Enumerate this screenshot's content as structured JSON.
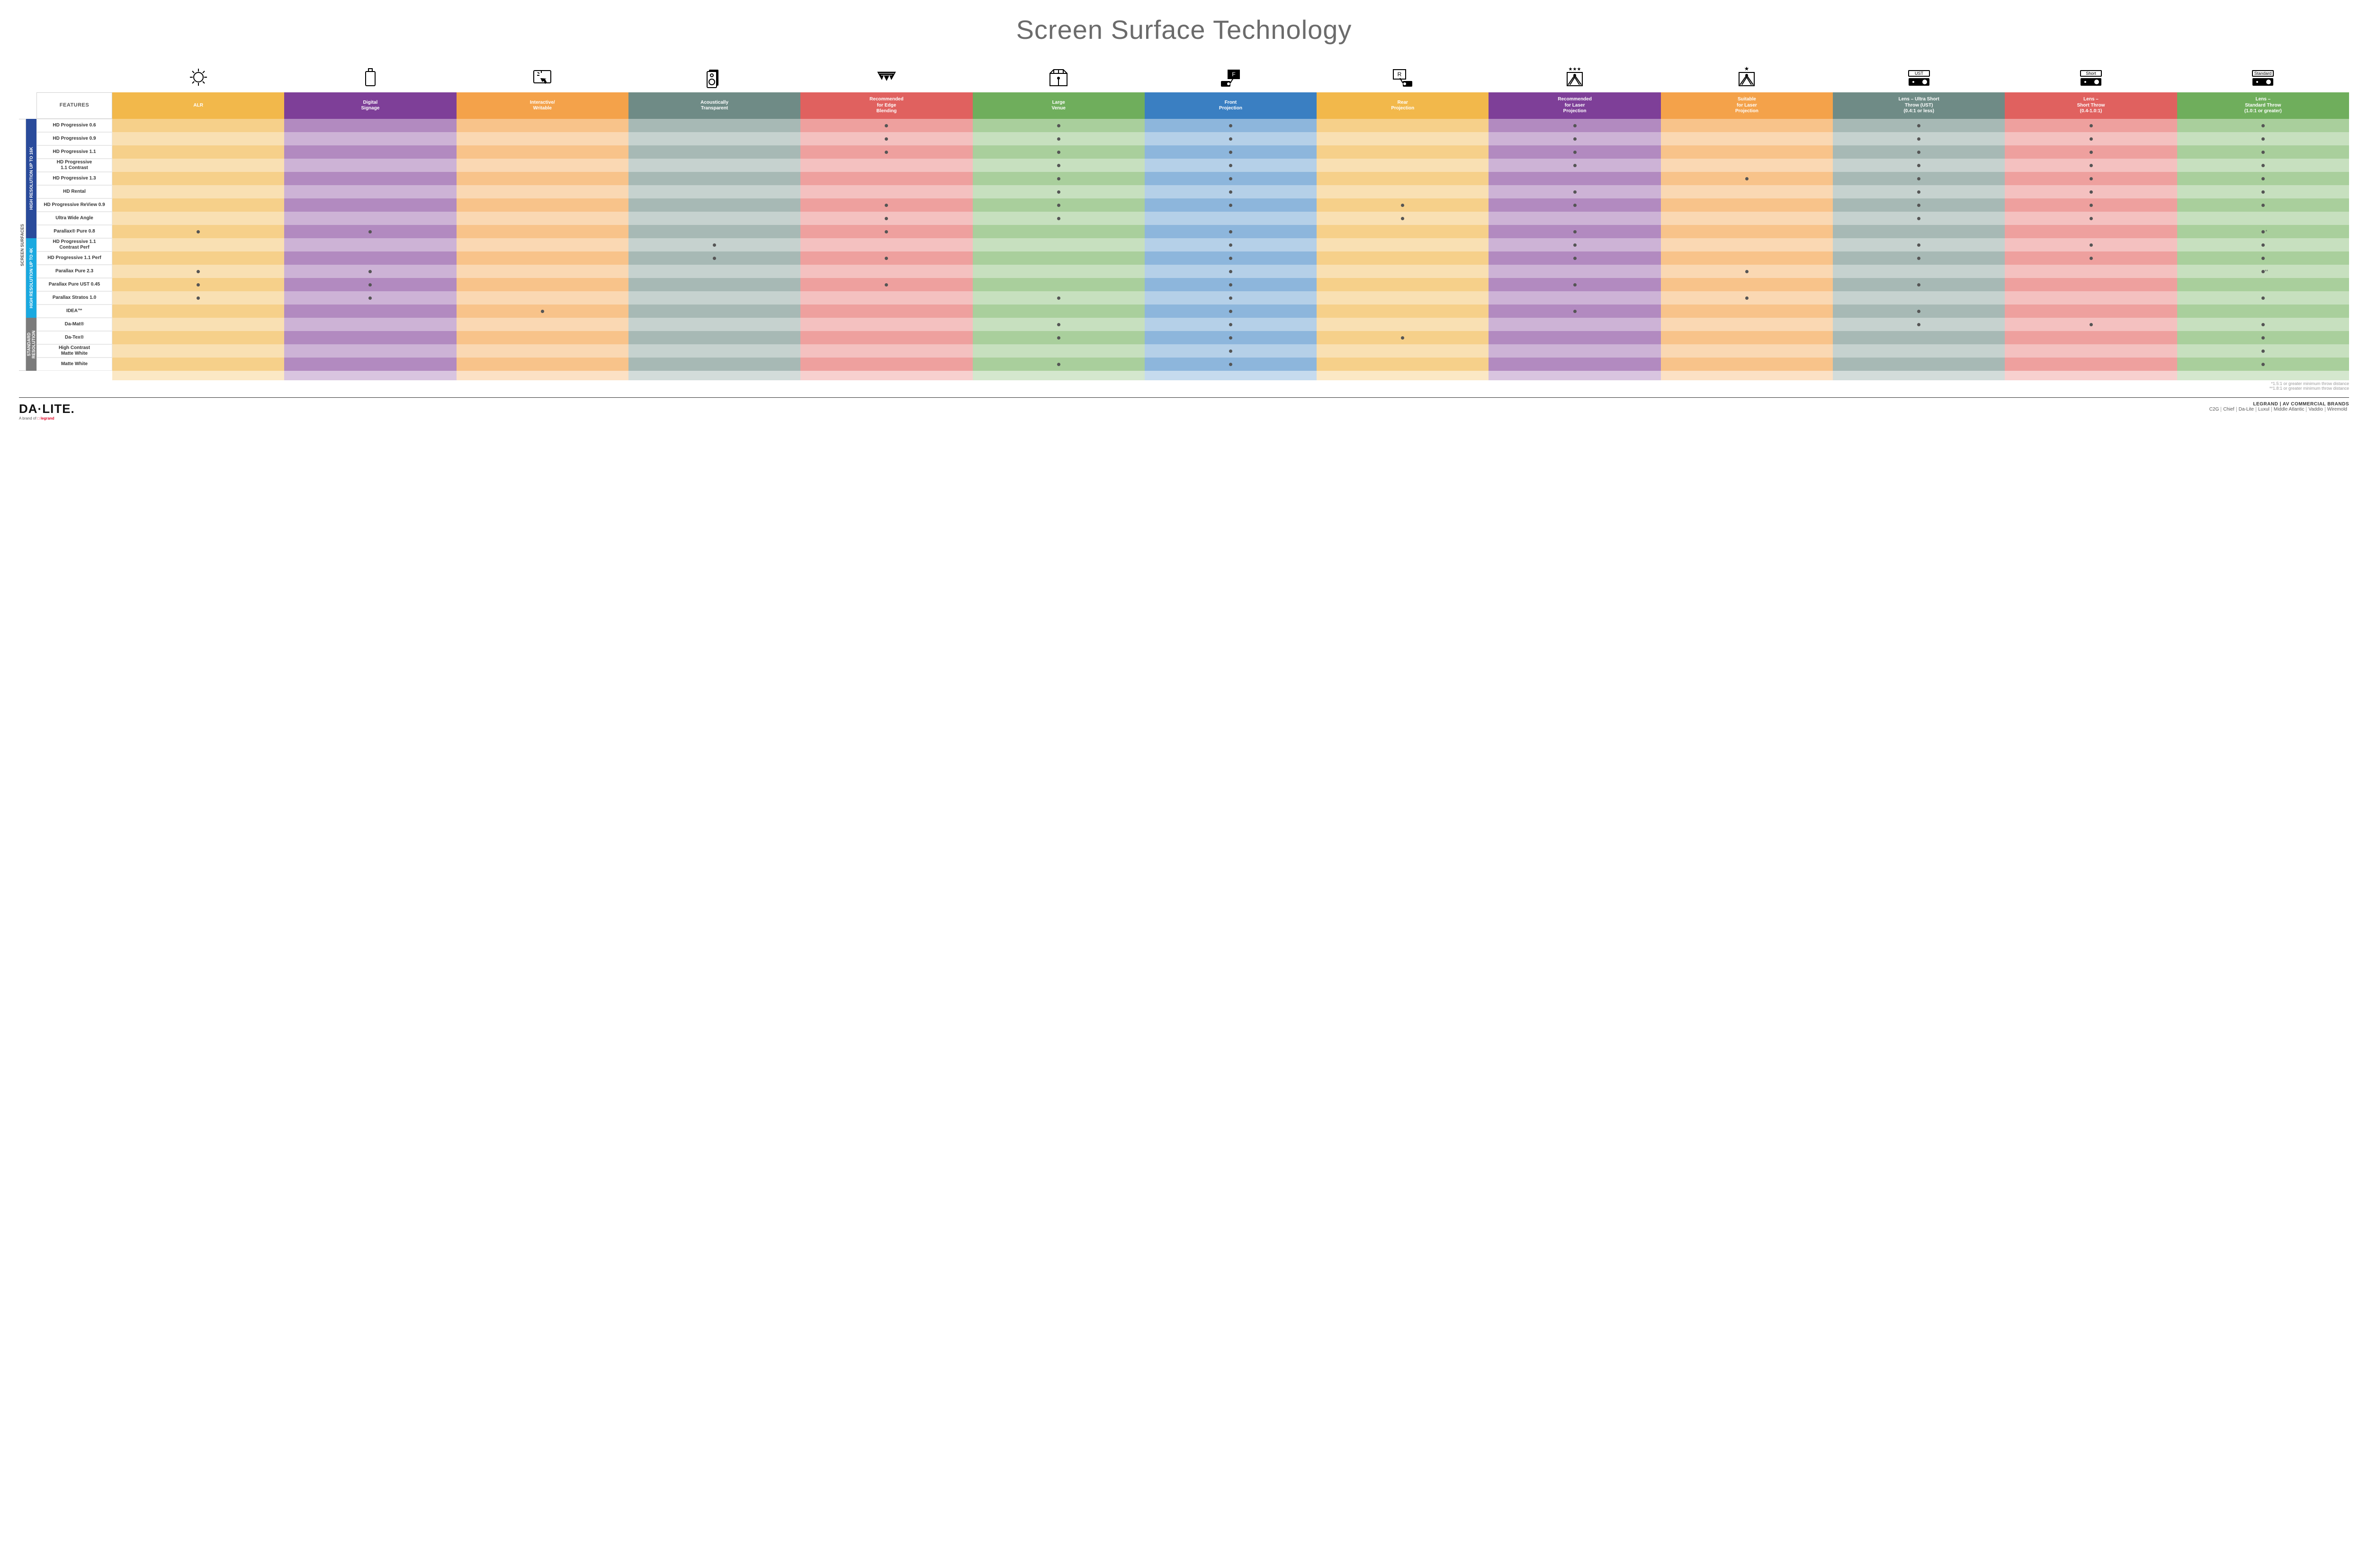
{
  "title": "Screen Surface Technology",
  "featuresLabel": "FEATURES",
  "sideOuter": "SCREEN SURFACES",
  "colors": {
    "group16k": "#2a4b9b",
    "group4k": "#1aa9e0",
    "groupStd": "#7b7b7b"
  },
  "columns": [
    {
      "key": "alr",
      "label": "ALR",
      "color": "#f2b84b",
      "alt": "#f6d08a",
      "icon": "bulb"
    },
    {
      "key": "signage",
      "label": "Digital\nSignage",
      "color": "#7e3f98",
      "alt": "#b28ac0",
      "icon": "signage"
    },
    {
      "key": "interactive",
      "label": "Interactive/\nWritable",
      "color": "#f4a24a",
      "alt": "#f8c38a",
      "icon": "touch"
    },
    {
      "key": "acoustic",
      "label": "Acoustically\nTransparent",
      "color": "#6f8b86",
      "alt": "#a7b9b5",
      "icon": "speaker"
    },
    {
      "key": "edge",
      "label": "Recommended\nfor Edge\nBlending",
      "color": "#e0615f",
      "alt": "#eea09e",
      "icon": "blend"
    },
    {
      "key": "large",
      "label": "Large\nVenue",
      "color": "#6fae5c",
      "alt": "#a9cf9c",
      "icon": "venue"
    },
    {
      "key": "front",
      "label": "Front\nProjection",
      "color": "#3a7fc2",
      "alt": "#8db6dc",
      "icon": "front"
    },
    {
      "key": "rear",
      "label": "Rear\nProjection",
      "color": "#f2b84b",
      "alt": "#f6d08a",
      "icon": "rear"
    },
    {
      "key": "reclaser",
      "label": "Recommended\nfor Laser\nProjection",
      "color": "#7e3f98",
      "alt": "#b28ac0",
      "icon": "laser3"
    },
    {
      "key": "suitlaser",
      "label": "Suitable\nfor Laser\nProjection",
      "color": "#f4a24a",
      "alt": "#f8c38a",
      "icon": "laser1"
    },
    {
      "key": "ust",
      "label": "Lens – Ultra Short\nThrow (UST)\n(0.4:1 or less)",
      "color": "#6f8b86",
      "alt": "#a7b9b5",
      "icon": "projUST"
    },
    {
      "key": "short",
      "label": "Lens –\nShort Throw\n(0.4-1.0:1)",
      "color": "#e0615f",
      "alt": "#eea09e",
      "icon": "projShort"
    },
    {
      "key": "std",
      "label": "Lens –\nStandard Throw\n(1.0:1 or greater)",
      "color": "#6fae5c",
      "alt": "#a9cf9c",
      "icon": "projStd"
    }
  ],
  "groups": [
    {
      "label": "HIGH RESOLUTION UP TO 16K",
      "colorKey": "group16k",
      "rows": [
        {
          "label": "HD Progressive 0.6",
          "cells": {
            "edge": 1,
            "large": 1,
            "front": 1,
            "reclaser": 1,
            "ust": 1,
            "short": 1,
            "std": 1
          }
        },
        {
          "label": "HD Progressive 0.9",
          "cells": {
            "edge": 1,
            "large": 1,
            "front": 1,
            "reclaser": 1,
            "ust": 1,
            "short": 1,
            "std": 1
          }
        },
        {
          "label": "HD Progressive 1.1",
          "cells": {
            "edge": 1,
            "large": 1,
            "front": 1,
            "reclaser": 1,
            "ust": 1,
            "short": 1,
            "std": 1
          }
        },
        {
          "label": "HD Progressive\n1.1 Contrast",
          "cells": {
            "large": 1,
            "front": 1,
            "reclaser": 1,
            "ust": 1,
            "short": 1,
            "std": 1
          }
        },
        {
          "label": "HD Progressive 1.3",
          "cells": {
            "large": 1,
            "front": 1,
            "suitlaser": 1,
            "ust": 1,
            "short": 1,
            "std": 1
          }
        },
        {
          "label": "HD Rental",
          "cells": {
            "large": 1,
            "front": 1,
            "reclaser": 1,
            "ust": 1,
            "short": 1,
            "std": 1
          }
        },
        {
          "label": "HD Progressive ReView 0.9",
          "cells": {
            "edge": 1,
            "large": 1,
            "front": 1,
            "rear": 1,
            "reclaser": 1,
            "ust": 1,
            "short": 1,
            "std": 1
          }
        },
        {
          "label": "Ultra Wide Angle",
          "cells": {
            "edge": 1,
            "large": 1,
            "rear": 1,
            "ust": 1,
            "short": 1
          }
        },
        {
          "label": "Parallax® Pure 0.8",
          "cells": {
            "alr": 1,
            "signage": 1,
            "edge": 1,
            "front": 1,
            "reclaser": 1,
            "std": "*"
          }
        }
      ]
    },
    {
      "label": "HIGH RESOLUTION UP TO 4K",
      "colorKey": "group4k",
      "rows": [
        {
          "label": "HD Progressive 1.1\nContrast Perf",
          "cells": {
            "acoustic": 1,
            "front": 1,
            "reclaser": 1,
            "ust": 1,
            "short": 1,
            "std": 1
          }
        },
        {
          "label": "HD Progressive 1.1 Perf",
          "cells": {
            "acoustic": 1,
            "edge": 1,
            "front": 1,
            "reclaser": 1,
            "ust": 1,
            "short": 1,
            "std": 1
          }
        },
        {
          "label": "Parallax Pure 2.3",
          "cells": {
            "alr": 1,
            "signage": 1,
            "front": 1,
            "suitlaser": 1,
            "std": "**"
          }
        },
        {
          "label": "Parallax Pure UST 0.45",
          "cells": {
            "alr": 1,
            "signage": 1,
            "edge": 1,
            "front": 1,
            "reclaser": 1,
            "ust": 1
          }
        },
        {
          "label": "Parallax Stratos 1.0",
          "cells": {
            "alr": 1,
            "signage": 1,
            "large": 1,
            "front": 1,
            "suitlaser": 1,
            "std": 1
          }
        },
        {
          "label": "IDEA™",
          "cells": {
            "interactive": 1,
            "front": 1,
            "reclaser": 1,
            "ust": 1
          }
        }
      ]
    },
    {
      "label": "STANDARD\nRESOLUTION",
      "colorKey": "groupStd",
      "rows": [
        {
          "label": "Da-Mat®",
          "cells": {
            "large": 1,
            "front": 1,
            "ust": 1,
            "short": 1,
            "std": 1
          }
        },
        {
          "label": "Da-Tex®",
          "cells": {
            "large": 1,
            "front": 1,
            "rear": 1,
            "std": 1
          }
        },
        {
          "label": "High Contrast\nMatte White",
          "cells": {
            "front": 1,
            "std": 1
          }
        },
        {
          "label": "Matte White",
          "cells": {
            "large": 1,
            "front": 1,
            "std": 1
          }
        }
      ]
    }
  ],
  "footnotes": [
    "*1.5:1 or greater minimum throw distance",
    "**1.8:1 or greater minimum throw distance"
  ],
  "footer": {
    "logo": "DA·LITE.",
    "logoSub1": "A brand of",
    "logoSub2": "legrand",
    "brandsHeader": "LEGRAND | AV COMMERCIAL BRANDS",
    "brands": [
      "C2G",
      "Chief",
      "Da-Lite",
      "Luxul",
      "Middle Atlantic",
      "Vaddio",
      "Wiremold"
    ]
  }
}
